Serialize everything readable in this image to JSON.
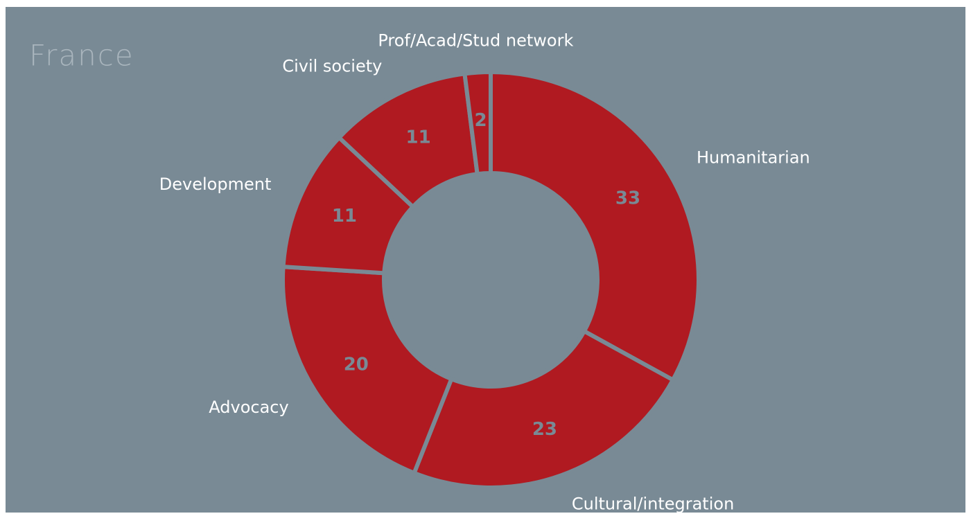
{
  "chart_data": {
    "type": "donut",
    "title": "France",
    "categories": [
      "Humanitarian",
      "Cultural/integration",
      "Advocacy",
      "Development",
      "Civil society",
      "Prof/Acad/Stud network"
    ],
    "values": [
      33,
      23,
      20,
      11,
      11,
      2
    ],
    "color": "#b01a21"
  }
}
